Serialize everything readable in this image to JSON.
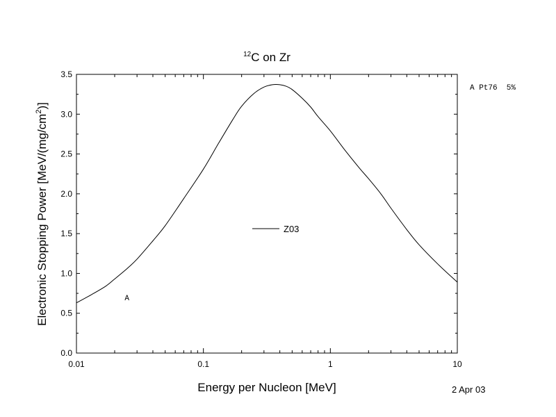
{
  "chart_data": {
    "type": "line",
    "title_super": "12",
    "title_main": "C on Zr",
    "xlabel": "Energy per Nucleon [MeV]",
    "ylabel_main": "Electronic Stopping Power [MeV/(mg/cm",
    "ylabel_sup": "2",
    "ylabel_end": ")]",
    "x_scale": "log",
    "xlim": [
      0.01,
      10
    ],
    "ylim": [
      0,
      3.5
    ],
    "x_ticks": [
      0.01,
      0.1,
      1,
      10
    ],
    "x_tick_labels": [
      "0.01",
      "0.1",
      "1",
      "10"
    ],
    "y_ticks": [
      0,
      0.5,
      1,
      1.5,
      2,
      2.5,
      3,
      3.5
    ],
    "y_tick_labels": [
      "0.0",
      "0.5",
      "1.0",
      "1.5",
      "2.0",
      "2.5",
      "3.0",
      "3.5"
    ],
    "grid": false,
    "series": [
      {
        "name": "Z03",
        "x": [
          0.01,
          0.013,
          0.017,
          0.02,
          0.025,
          0.03,
          0.04,
          0.05,
          0.07,
          0.1,
          0.13,
          0.17,
          0.2,
          0.25,
          0.3,
          0.35,
          0.4,
          0.45,
          0.5,
          0.6,
          0.7,
          0.8,
          1,
          1.3,
          1.7,
          2,
          2.5,
          3,
          4,
          5,
          7,
          10
        ],
        "y": [
          0.63,
          0.73,
          0.84,
          0.93,
          1.06,
          1.18,
          1.41,
          1.6,
          1.94,
          2.31,
          2.62,
          2.93,
          3.1,
          3.26,
          3.34,
          3.37,
          3.37,
          3.35,
          3.31,
          3.2,
          3.09,
          2.97,
          2.79,
          2.55,
          2.32,
          2.19,
          2.0,
          1.82,
          1.55,
          1.36,
          1.12,
          0.89
        ]
      }
    ],
    "legend": {
      "label": "Z03",
      "placement": "center"
    },
    "annotations": {
      "point_marker": "A",
      "point_marker_x": 0.025,
      "point_marker_y": 0.7,
      "reference": "A Pt76  5%",
      "date": "2 Apr 03"
    }
  }
}
